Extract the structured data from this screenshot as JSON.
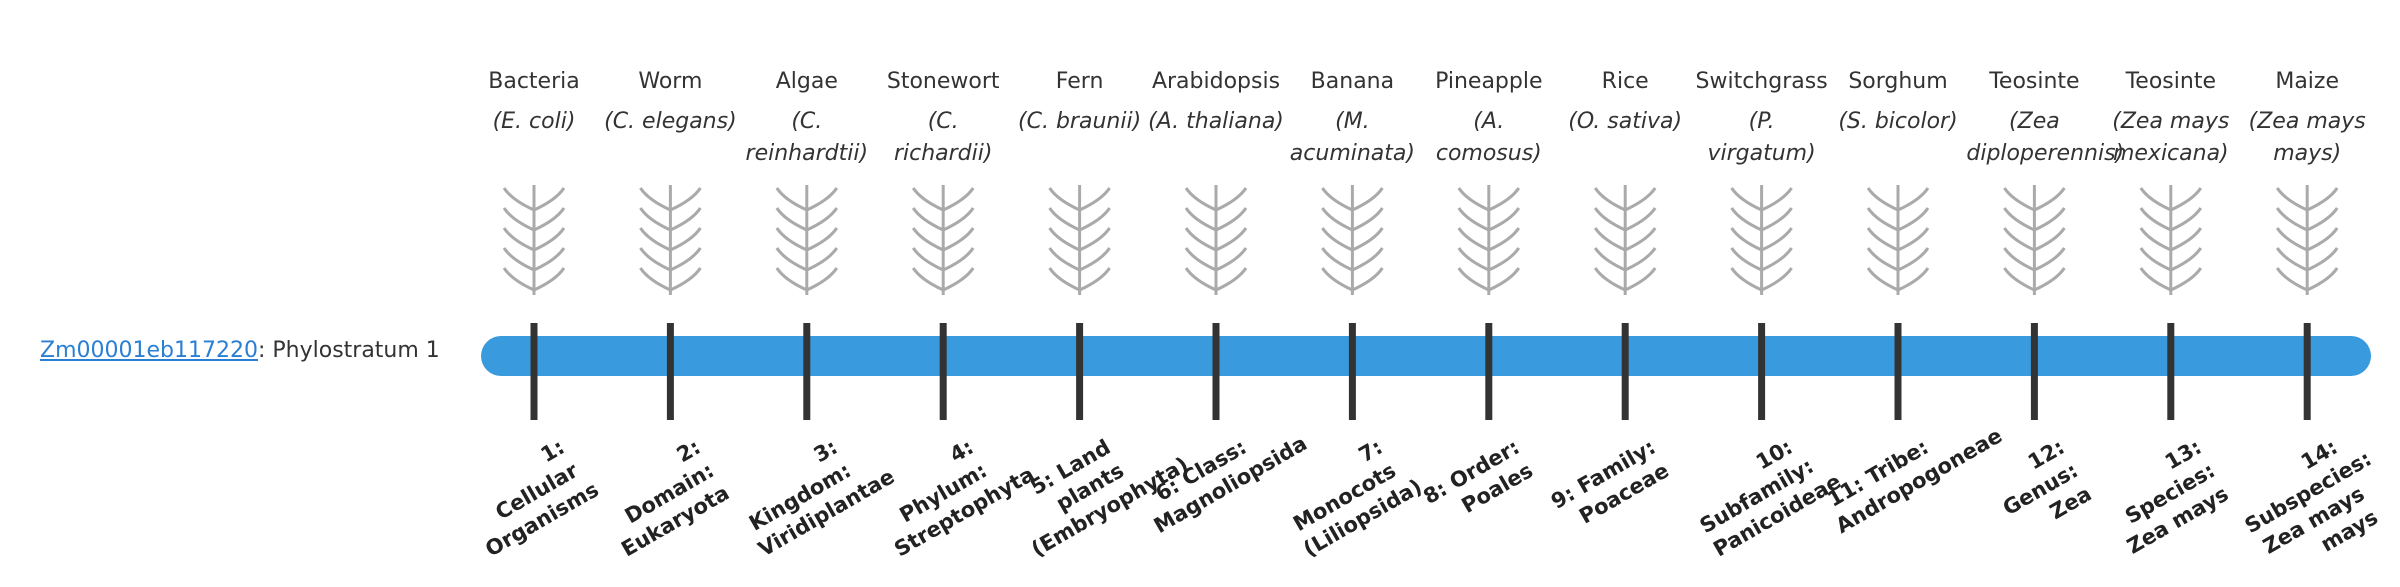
{
  "gene": {
    "id": "Zm00001eb117220",
    "suffix": ": Phylostratum 1"
  },
  "organisms": [
    {
      "common": "Bacteria",
      "scientific": "(E. coli)"
    },
    {
      "common": "Worm",
      "scientific": "(C. elegans)"
    },
    {
      "common": "Algae",
      "scientific": "(C. reinhardtii)"
    },
    {
      "common": "Stonewort",
      "scientific": "(C. richardii)"
    },
    {
      "common": "Fern",
      "scientific": "(C. braunii)"
    },
    {
      "common": "Arabidopsis",
      "scientific": "(A. thaliana)"
    },
    {
      "common": "Banana",
      "scientific": "(M. acuminata)"
    },
    {
      "common": "Pineapple",
      "scientific": "(A. comosus)"
    },
    {
      "common": "Rice",
      "scientific": "(O. sativa)"
    },
    {
      "common": "Switchgrass",
      "scientific": "(P. virgatum)"
    },
    {
      "common": "Sorghum",
      "scientific": "(S. bicolor)"
    },
    {
      "common": "Teosinte",
      "scientific": "(Zea diploperennis)"
    },
    {
      "common": "Teosinte",
      "scientific": "(Zea mays mexicana)"
    },
    {
      "common": "Maize",
      "scientific": "(Zea mays mays)"
    }
  ],
  "strata": [
    "1: Cellular Organisms",
    "2: Domain: Eukaryota",
    "3: Kingdom: Viridiplantae",
    "4: Phylum: Streptophyta",
    "5: Land plants (Embryophyta)",
    "6: Class: Magnoliopsida",
    "7: Monocots (Liliopsida)",
    "8: Order: Poales",
    "9: Family: Poaceae",
    "10: Subfamily: Panicoideae",
    "11: Tribe: Andropogoneae",
    "12: Genus: Zea",
    "13: Species: Zea mays",
    "14: Subspecies: Zea mays mays"
  ]
}
